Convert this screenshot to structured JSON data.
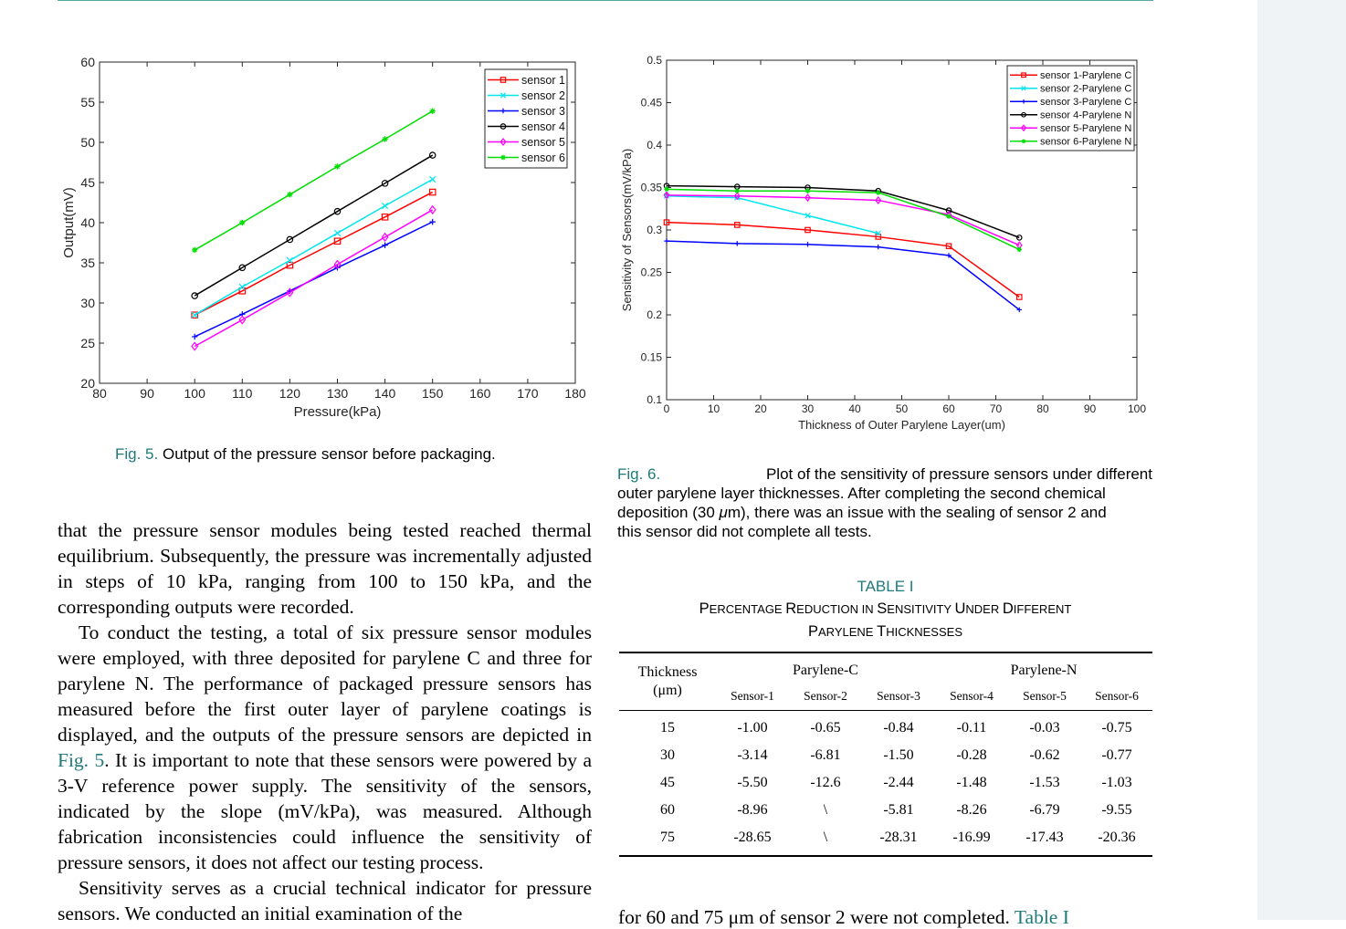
{
  "fig5": {
    "caption_label": "Fig. 5.",
    "caption_text": "Output of the pressure sensor before packaging.",
    "chart_data": {
      "type": "line",
      "xlabel": "Pressure(kPa)",
      "ylabel": "Output(mV)",
      "xlim": [
        80,
        180
      ],
      "ylim": [
        20,
        60
      ],
      "xticks": [
        80,
        90,
        100,
        110,
        120,
        130,
        140,
        150,
        160,
        170,
        180
      ],
      "yticks": [
        20,
        25,
        30,
        35,
        40,
        45,
        50,
        55,
        60
      ],
      "x": [
        100,
        110,
        120,
        130,
        140,
        150
      ],
      "legend": "top-right",
      "series": [
        {
          "name": "sensor 1",
          "color": "#ff0000",
          "marker": "square",
          "values": [
            28.5,
            31.5,
            34.7,
            37.7,
            40.7,
            43.8
          ]
        },
        {
          "name": "sensor 2",
          "color": "#00e5ee",
          "marker": "x",
          "values": [
            28.5,
            32.0,
            35.3,
            38.7,
            42.1,
            45.4
          ]
        },
        {
          "name": "sensor 3",
          "color": "#0000ff",
          "marker": "plus",
          "values": [
            25.8,
            28.6,
            31.5,
            34.4,
            37.2,
            40.1
          ]
        },
        {
          "name": "sensor 4",
          "color": "#000000",
          "marker": "circle",
          "values": [
            30.9,
            34.4,
            37.9,
            41.4,
            44.9,
            48.4
          ]
        },
        {
          "name": "sensor 5",
          "color": "#ff00ff",
          "marker": "diamond",
          "values": [
            24.6,
            27.9,
            31.3,
            34.8,
            38.2,
            41.6
          ]
        },
        {
          "name": "sensor 6",
          "color": "#00dd00",
          "marker": "star",
          "values": [
            36.6,
            40.0,
            43.5,
            47.0,
            50.4,
            53.9
          ]
        }
      ]
    }
  },
  "fig6": {
    "caption_label": "Fig. 6.",
    "caption_line1": "Plot of the sensitivity of pressure sensors under different",
    "caption_line2": "outer parylene layer thicknesses. After completing the second chemical",
    "caption_line3a": "deposition (30 ",
    "caption_mu": "μ",
    "caption_line3b": "m), there was an issue with the sealing of sensor 2 and",
    "caption_line4": "this sensor did not complete all tests.",
    "chart_data": {
      "type": "line",
      "xlabel": "Thickness of Outer Parylene Layer(um)",
      "ylabel": "Sensitivity of Sensors(mV/kPa)",
      "xlim": [
        0,
        100
      ],
      "ylim": [
        0.1,
        0.5
      ],
      "xticks": [
        0,
        10,
        20,
        30,
        40,
        50,
        60,
        70,
        80,
        90,
        100
      ],
      "yticks": [
        "0.1",
        "0.15",
        "0.2",
        "0.25",
        "0.3",
        "0.35",
        "0.4",
        "0.45",
        "0.5"
      ],
      "legend": "top-right",
      "series": [
        {
          "name": "sensor 1-Parylene C",
          "color": "#ff0000",
          "marker": "square",
          "x": [
            0,
            15,
            30,
            45,
            60,
            75
          ],
          "values": [
            0.309,
            0.306,
            0.3,
            0.292,
            0.281,
            0.221
          ]
        },
        {
          "name": "sensor 2-Parylene C",
          "color": "#00e5ee",
          "marker": "x",
          "x": [
            0,
            15,
            30,
            45
          ],
          "values": [
            0.34,
            0.338,
            0.317,
            0.296
          ]
        },
        {
          "name": "sensor 3-Parylene C",
          "color": "#0000ff",
          "marker": "plus",
          "x": [
            0,
            15,
            30,
            45,
            60,
            75
          ],
          "values": [
            0.287,
            0.284,
            0.283,
            0.28,
            0.27,
            0.206
          ]
        },
        {
          "name": "sensor 4-Parylene N",
          "color": "#000000",
          "marker": "circle",
          "x": [
            0,
            15,
            30,
            45,
            60,
            75
          ],
          "values": [
            0.352,
            0.351,
            0.35,
            0.346,
            0.323,
            0.291
          ]
        },
        {
          "name": "sensor 5-Parylene N",
          "color": "#ff00ff",
          "marker": "diamond",
          "x": [
            0,
            15,
            30,
            45,
            60,
            75
          ],
          "values": [
            0.341,
            0.34,
            0.338,
            0.335,
            0.318,
            0.282
          ]
        },
        {
          "name": "sensor 6-Parylene N",
          "color": "#00dd00",
          "marker": "star",
          "x": [
            0,
            15,
            30,
            45,
            60,
            75
          ],
          "values": [
            0.348,
            0.346,
            0.346,
            0.344,
            0.316,
            0.277
          ]
        }
      ]
    }
  },
  "body": {
    "p1": "that the pressure sensor modules being tested reached thermal equilibrium. Subsequently, the pressure was incrementally adjusted in steps of 10 kPa, ranging from 100 to 150 kPa, and the corresponding outputs were recorded.",
    "p2a": "To conduct the testing, a total of six pressure sensor modules were employed, with three deposited for parylene C and three for parylene N. The performance of packaged pressure sensors has measured before the first outer layer of parylene coatings is displayed, and the outputs of the pressure sensors are depicted in ",
    "p2_link": "Fig. 5",
    "p2b": ". It is important to note that these sensors were powered by a 3-V reference power supply. The sensitivity of the sensors, indicated by the slope (mV/kPa), was measured. Although fabrication inconsistencies could influence the sensitivity of pressure sensors, it does not affect our testing process.",
    "p3": "Sensitivity serves as a crucial technical indicator for pressure sensors. We conducted an initial examination of the"
  },
  "table": {
    "label": "TABLE I",
    "title_line1_parts": [
      "P",
      "ERCENTAGE ",
      "R",
      "EDUCTION IN ",
      "S",
      "ENSITIVITY ",
      "U",
      "NDER ",
      "D",
      "IFFERENT"
    ],
    "title_line2_parts": [
      "P",
      "ARYLENE ",
      "T",
      "HICKNESSES"
    ],
    "header": {
      "thickness": "Thickness",
      "unit": "(μm)",
      "group_c": "Parylene-C",
      "group_n": "Parylene-N",
      "sensors": [
        "Sensor-1",
        "Sensor-2",
        "Sensor-3",
        "Sensor-4",
        "Sensor-5",
        "Sensor-6"
      ]
    },
    "rows": [
      [
        "15",
        "-1.00",
        "-0.65",
        "-0.84",
        "-0.11",
        "-0.03",
        "-0.75"
      ],
      [
        "30",
        "-3.14",
        "-6.81",
        "-1.50",
        "-0.28",
        "-0.62",
        "-0.77"
      ],
      [
        "45",
        "-5.50",
        "-12.6",
        "-2.44",
        "-1.48",
        "-1.53",
        "-1.03"
      ],
      [
        "60",
        "-8.96",
        "\\",
        "-5.81",
        "-8.26",
        "-6.79",
        "-9.55"
      ],
      [
        "75",
        "-28.65",
        "\\",
        "-28.31",
        "-16.99",
        "-17.43",
        "-20.36"
      ]
    ]
  },
  "bottom_fragment": {
    "text": "for 60 and 75 μm of sensor 2 were not completed.",
    "link": "Table I"
  }
}
